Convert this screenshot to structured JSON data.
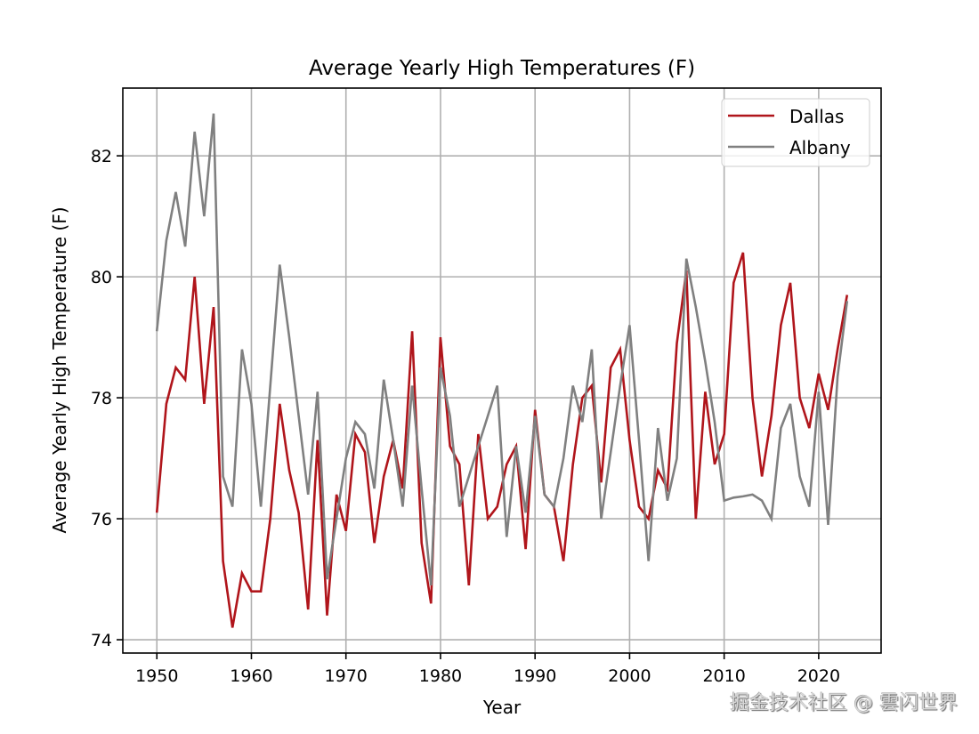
{
  "chart_data": {
    "type": "line",
    "title": "Average Yearly High Temperatures (F)",
    "xlabel": "Year",
    "ylabel": "Average Yearly High Temperature (F)",
    "xlim": [
      1946.4,
      2026.6
    ],
    "ylim": [
      73.78,
      83.12
    ],
    "xticks": [
      1950,
      1960,
      1970,
      1980,
      1990,
      2000,
      2010,
      2020
    ],
    "yticks": [
      74,
      76,
      78,
      80,
      82
    ],
    "grid": true,
    "legend_position": "top-right",
    "x": [
      1950,
      1951,
      1952,
      1953,
      1954,
      1955,
      1956,
      1957,
      1958,
      1959,
      1960,
      1961,
      1962,
      1963,
      1964,
      1965,
      1966,
      1967,
      1968,
      1969,
      1970,
      1971,
      1972,
      1973,
      1974,
      1975,
      1976,
      1977,
      1978,
      1979,
      1980,
      1981,
      1982,
      1983,
      1984,
      1985,
      1986,
      1987,
      1988,
      1989,
      1990,
      1991,
      1992,
      1993,
      1994,
      1995,
      1996,
      1997,
      1998,
      1999,
      2000,
      2001,
      2002,
      2003,
      2004,
      2005,
      2006,
      2007,
      2008,
      2009,
      2010,
      2011,
      2012,
      2013,
      2014,
      2015,
      2016,
      2017,
      2018,
      2019,
      2020,
      2021,
      2022,
      2023
    ],
    "series": [
      {
        "name": "Dallas",
        "color": "#b0151b",
        "values": [
          76.1,
          77.9,
          78.5,
          78.3,
          80.0,
          77.9,
          79.5,
          75.3,
          74.2,
          75.1,
          74.8,
          74.8,
          76.0,
          77.9,
          76.8,
          76.1,
          74.5,
          77.3,
          74.4,
          76.4,
          75.8,
          77.4,
          77.1,
          75.6,
          76.7,
          77.3,
          76.5,
          79.1,
          75.6,
          74.6,
          79.0,
          77.2,
          76.9,
          74.9,
          77.4,
          76.0,
          76.2,
          76.9,
          77.2,
          75.5,
          77.8,
          76.4,
          76.2,
          75.3,
          76.9,
          78.0,
          78.2,
          76.6,
          78.5,
          78.8,
          77.3,
          76.2,
          76.0,
          76.8,
          76.5,
          78.9,
          80.1,
          76.0,
          78.1,
          76.9,
          77.4,
          79.9,
          80.4,
          78.0,
          76.7,
          77.7,
          79.2,
          79.9,
          78.0,
          77.5,
          78.4,
          77.8,
          78.8,
          79.7
        ]
      },
      {
        "name": "Albany",
        "color": "#808080",
        "values": [
          79.1,
          80.6,
          81.4,
          80.5,
          82.4,
          81.0,
          82.7,
          76.7,
          76.2,
          78.8,
          77.9,
          76.2,
          78.2,
          80.2,
          79.0,
          77.7,
          76.4,
          78.1,
          75.0,
          76.0,
          77.0,
          77.6,
          77.4,
          76.5,
          78.3,
          77.3,
          76.2,
          78.2,
          76.5,
          74.9,
          78.5,
          77.7,
          76.2,
          76.7,
          77.2,
          77.7,
          78.2,
          75.7,
          77.2,
          76.1,
          77.7,
          76.4,
          76.2,
          77.0,
          78.2,
          77.6,
          78.8,
          76.0,
          77.1,
          78.2,
          79.2,
          77.3,
          75.3,
          77.5,
          76.3,
          77.0,
          80.3,
          79.5,
          78.6,
          77.6,
          76.3,
          76.35,
          76.37,
          76.4,
          76.3,
          76.0,
          77.5,
          77.9,
          76.7,
          76.2,
          78.1,
          75.9,
          78.35,
          79.6
        ]
      }
    ]
  },
  "watermark": "掘金技术社区 @ 雲闪世界"
}
